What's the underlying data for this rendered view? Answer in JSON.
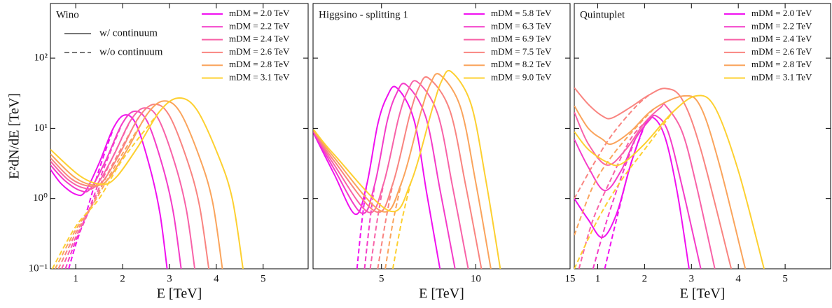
{
  "chart_data": [
    {
      "type": "line",
      "title": "Wino",
      "xlabel": "E [TeV]",
      "ylabel": "E²dN/dE [TeV]",
      "yscale": "log",
      "xlim": [
        0.46,
        5.96
      ],
      "xticks": [
        1,
        2,
        3,
        4,
        5
      ],
      "ylim": [
        0.1,
        600
      ],
      "yticks": [
        {
          "value": 0.1,
          "label": "10⁻¹"
        },
        {
          "value": 1,
          "label": "10⁰"
        },
        {
          "value": 10,
          "label": "10¹"
        },
        {
          "value": 100,
          "label": "10²"
        }
      ],
      "show_yticklabels": true,
      "line_styles": [
        {
          "label": "w/ continuum",
          "dash": "solid"
        },
        {
          "label": "w/o continuum",
          "dash": "dashed"
        }
      ],
      "series": [
        {
          "name": "mDM = 2.0 TeV",
          "color": "#f010f0",
          "x": [
            0.46,
            0.7,
            1.0,
            1.2,
            1.5,
            1.8,
            2.05,
            2.3,
            2.6,
            2.8,
            2.95
          ],
          "values": [
            2.6,
            1.6,
            1.15,
            1.25,
            3.2,
            10,
            15.5,
            11,
            2.5,
            0.6,
            0.1
          ],
          "dashed_x": [
            0.85,
            1.0,
            1.2,
            1.5,
            1.8
          ],
          "dashed_values": [
            0.1,
            0.22,
            0.55,
            2.6,
            9.8
          ]
        },
        {
          "name": "mDM = 2.2 TeV",
          "color": "#f43cc8",
          "x": [
            0.46,
            0.77,
            1.1,
            1.32,
            1.65,
            1.98,
            2.25,
            2.53,
            2.86,
            3.08,
            3.25
          ],
          "values": [
            3.0,
            1.8,
            1.3,
            1.4,
            3.6,
            11.3,
            17.5,
            12.4,
            2.8,
            0.65,
            0.1
          ],
          "dashed_x": [
            0.78,
            1.0,
            1.25,
            1.6,
            1.98
          ],
          "dashed_values": [
            0.1,
            0.25,
            0.6,
            2.7,
            11.3
          ]
        },
        {
          "name": "mDM = 2.4 TeV",
          "color": "#f862a8",
          "x": [
            0.46,
            0.84,
            1.2,
            1.44,
            1.8,
            2.16,
            2.46,
            2.76,
            3.12,
            3.36,
            3.54
          ],
          "values": [
            3.4,
            1.85,
            1.4,
            1.55,
            4,
            12.6,
            19.5,
            13.8,
            3.1,
            0.7,
            0.1
          ],
          "dashed_x": [
            0.7,
            1.0,
            1.3,
            1.7,
            2.16
          ],
          "dashed_values": [
            0.1,
            0.28,
            0.7,
            2.9,
            12.6
          ]
        },
        {
          "name": "mDM = 2.6 TeV",
          "color": "#f98480",
          "x": [
            0.46,
            0.91,
            1.3,
            1.56,
            1.95,
            2.34,
            2.67,
            2.99,
            3.38,
            3.64,
            3.84
          ],
          "values": [
            3.8,
            1.9,
            1.5,
            1.7,
            4.5,
            14.2,
            22,
            15.5,
            3.5,
            0.8,
            0.1
          ],
          "dashed_x": [
            0.63,
            1.0,
            1.35,
            1.8,
            2.34
          ],
          "dashed_values": [
            0.1,
            0.32,
            0.8,
            3.2,
            14.2
          ]
        },
        {
          "name": "mDM = 2.8 TeV",
          "color": "#faa45c",
          "x": [
            0.46,
            0.98,
            1.4,
            1.68,
            2.1,
            2.52,
            2.87,
            3.22,
            3.64,
            3.92,
            4.13
          ],
          "values": [
            4.3,
            2.0,
            1.55,
            1.85,
            5,
            15.8,
            24.5,
            17.3,
            3.9,
            0.9,
            0.1
          ],
          "dashed_x": [
            0.56,
            1.0,
            1.4,
            1.9,
            2.52
          ],
          "dashed_values": [
            0.1,
            0.36,
            0.9,
            3.4,
            15.8
          ]
        },
        {
          "name": "mDM = 3.1 TeV",
          "color": "#fdd030",
          "x": [
            0.46,
            1.09,
            1.55,
            1.86,
            2.33,
            2.79,
            3.18,
            3.57,
            4.03,
            4.34,
            4.57
          ],
          "values": [
            5.0,
            2.1,
            1.6,
            2.0,
            5.5,
            17.4,
            27,
            19,
            4.3,
            1.0,
            0.1
          ],
          "dashed_x": [
            0.5,
            1.0,
            1.5,
            2.0,
            2.79
          ],
          "dashed_values": [
            0.1,
            0.4,
            1.0,
            3.6,
            17.4
          ]
        }
      ]
    },
    {
      "type": "line",
      "title": "Higgsino - splitting 1",
      "xlabel": "E [TeV]",
      "yscale": "log",
      "xlim": [
        1.37,
        15.0
      ],
      "xticks": [
        5,
        10,
        15
      ],
      "ylim": [
        0.1,
        600
      ],
      "yticks": [
        0.1,
        1,
        10,
        100
      ],
      "show_yticklabels": false,
      "series": [
        {
          "name": "mDM = 5.8 TeV",
          "color": "#f010f0",
          "x": [
            1.4,
            2.5,
            3.6,
            4.2,
            4.8,
            5.3,
            5.8,
            6.72,
            7.41,
            8.1
          ],
          "values": [
            8.5,
            2.2,
            0.6,
            1.5,
            11.4,
            28.5,
            38,
            13.3,
            1.14,
            0.1
          ],
          "dashed_x": [
            3.7,
            3.95,
            4.2
          ],
          "dashed_values": [
            0.1,
            0.45,
            1.5
          ]
        },
        {
          "name": "mDM = 6.3 TeV",
          "color": "#f43cc8",
          "x": [
            1.4,
            2.5,
            3.95,
            4.63,
            5.3,
            5.8,
            6.3,
            7.34,
            8.12,
            8.9
          ],
          "values": [
            8.8,
            2.6,
            0.62,
            1.55,
            12.6,
            31.5,
            42,
            14.7,
            1.26,
            0.1
          ],
          "dashed_x": [
            4.1,
            4.37,
            4.63
          ],
          "dashed_values": [
            0.1,
            0.45,
            1.55
          ]
        },
        {
          "name": "mDM = 6.9 TeV",
          "color": "#f862a8",
          "x": [
            1.4,
            2.5,
            4.3,
            5.1,
            5.9,
            6.4,
            6.9,
            7.98,
            8.79,
            9.6
          ],
          "values": [
            9.0,
            3.0,
            0.64,
            1.6,
            13.8,
            34.5,
            46,
            16.1,
            1.38,
            0.1
          ],
          "dashed_x": [
            4.4,
            4.75,
            5.1
          ],
          "dashed_values": [
            0.1,
            0.45,
            1.6
          ]
        },
        {
          "name": "mDM = 7.5 TeV",
          "color": "#f98480",
          "x": [
            1.4,
            2.5,
            4.7,
            5.6,
            6.5,
            7.0,
            7.5,
            8.62,
            9.46,
            10.3
          ],
          "values": [
            9.2,
            3.4,
            0.65,
            1.63,
            15.6,
            39,
            52,
            18.2,
            1.56,
            0.1
          ],
          "dashed_x": [
            4.8,
            5.2,
            5.6
          ],
          "dashed_values": [
            0.1,
            0.45,
            1.63
          ]
        },
        {
          "name": "mDM = 8.2 TeV",
          "color": "#faa45c",
          "x": [
            1.4,
            2.5,
            5.0,
            6.05,
            7.1,
            7.6,
            8.1,
            9.18,
            9.99,
            10.8
          ],
          "values": [
            9.4,
            3.8,
            0.66,
            1.65,
            17.4,
            43.5,
            58,
            20.3,
            1.74,
            0.1
          ],
          "dashed_x": [
            5.2,
            5.6,
            6.05
          ],
          "dashed_values": [
            0.1,
            0.45,
            1.65
          ]
        },
        {
          "name": "mDM = 9.0 TeV",
          "color": "#fdd030",
          "x": [
            1.4,
            2.5,
            5.4,
            6.55,
            7.7,
            8.2,
            8.7,
            9.74,
            10.52,
            11.3
          ],
          "values": [
            9.6,
            4.2,
            0.67,
            1.68,
            19.2,
            48,
            64,
            22.4,
            1.92,
            0.1
          ],
          "dashed_x": [
            5.6,
            6.05,
            6.55
          ],
          "dashed_values": [
            0.1,
            0.45,
            1.68
          ]
        }
      ]
    },
    {
      "type": "line",
      "title": "Quintuplet",
      "xlabel": "E [TeV]",
      "yscale": "log",
      "xlim": [
        0.5,
        5.97
      ],
      "xticks": [
        1,
        2,
        3,
        4,
        5
      ],
      "ylim": [
        0.1,
        600
      ],
      "yticks": [
        0.1,
        1,
        10,
        100
      ],
      "show_yticklabels": false,
      "series": [
        {
          "name": "mDM = 2.0 TeV",
          "color": "#f010f0",
          "x": [
            0.5,
            0.8,
            1.1,
            1.4,
            1.7,
            2.0,
            2.2,
            2.45,
            2.7,
            2.95
          ],
          "values": [
            1.0,
            0.5,
            0.28,
            0.6,
            3,
            11,
            14,
            7,
            1.2,
            0.1
          ],
          "dashed_x": [
            1.15,
            1.4,
            1.7,
            2.0
          ],
          "dashed_values": [
            0.1,
            0.5,
            3,
            11
          ]
        },
        {
          "name": "mDM = 2.2 TeV",
          "color": "#f43cc8",
          "x": [
            0.5,
            0.8,
            1.15,
            1.5,
            1.8,
            2.1,
            2.25,
            2.5,
            2.8,
            3.2
          ],
          "values": [
            7,
            2.8,
            1.3,
            2.5,
            7,
            13,
            15,
            9,
            1.5,
            0.1
          ],
          "dashed_x": [
            0.9,
            1.2,
            1.5,
            1.8
          ],
          "dashed_values": [
            0.1,
            0.5,
            2,
            7
          ]
        },
        {
          "name": "mDM = 2.4 TeV",
          "color": "#f862a8",
          "x": [
            0.5,
            0.8,
            1.2,
            1.6,
            2.0,
            2.35,
            2.45,
            2.8,
            3.1,
            3.5
          ],
          "values": [
            17,
            6,
            3,
            5,
            12,
            20,
            21,
            9,
            1.6,
            0.1
          ],
          "dashed_x": [
            0.6,
            0.9,
            1.3,
            1.7,
            2.0
          ],
          "dashed_values": [
            0.1,
            0.5,
            2,
            7,
            12
          ]
        },
        {
          "name": "mDM = 2.6 TeV",
          "color": "#f98480",
          "x": [
            0.5,
            0.8,
            1.1,
            1.3,
            1.7,
            2.1,
            2.45,
            2.8,
            3.2,
            3.85
          ],
          "values": [
            38,
            22,
            15,
            14,
            20,
            30,
            37,
            26,
            5,
            0.1
          ],
          "dashed_x": [
            0.5,
            0.9,
            1.3,
            1.8,
            2.1
          ],
          "dashed_values": [
            1.0,
            3,
            8,
            20,
            30
          ]
        },
        {
          "name": "mDM = 2.8 TeV",
          "color": "#faa45c",
          "x": [
            0.5,
            0.8,
            1.1,
            1.3,
            1.7,
            2.2,
            2.85,
            3.2,
            3.6,
            4.15
          ],
          "values": [
            21,
            10,
            7,
            6,
            9,
            19,
            29,
            20,
            3,
            0.1
          ],
          "dashed_x": [
            0.5,
            0.9,
            1.3,
            1.8,
            2.2
          ],
          "dashed_values": [
            0.3,
            1.5,
            4,
            10,
            19
          ]
        },
        {
          "name": "mDM = 3.1 TeV",
          "color": "#fdd030",
          "x": [
            0.5,
            0.8,
            1.2,
            1.5,
            2.0,
            2.6,
            3.1,
            3.5,
            4.0,
            4.55
          ],
          "values": [
            9,
            5,
            3.3,
            3.1,
            6,
            17,
            29,
            20,
            2.5,
            0.1
          ],
          "dashed_x": [
            0.5,
            1.0,
            1.5,
            2.0,
            2.6
          ],
          "dashed_values": [
            0.1,
            0.5,
            1.8,
            5,
            17
          ]
        }
      ]
    }
  ]
}
